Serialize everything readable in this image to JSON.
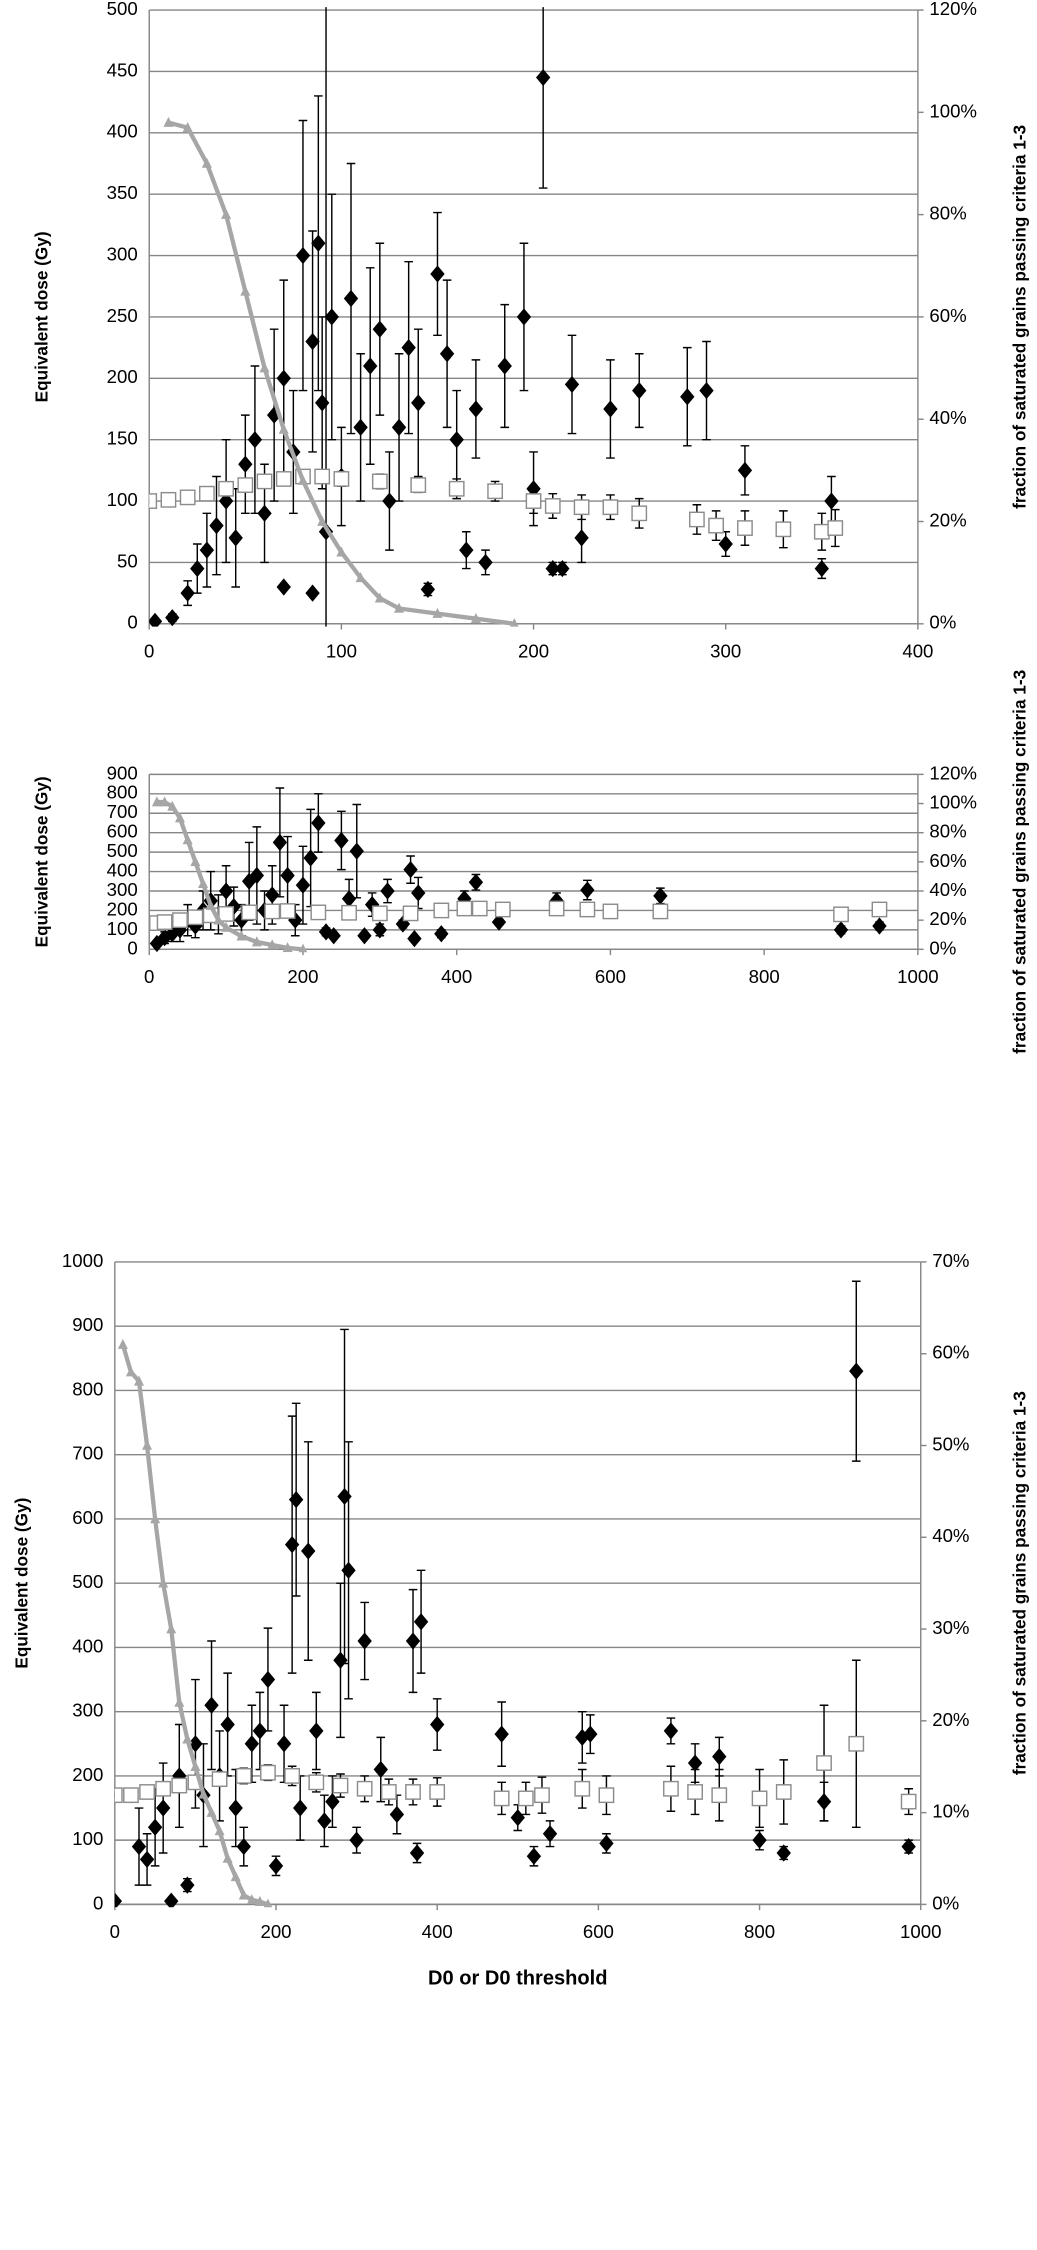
{
  "chart_data": [
    {
      "type": "scatter",
      "ylabel": "Equivalent dose (Gy)",
      "y2label": "fraction of saturated grains passing criteria 1-3",
      "xlim": [
        0,
        400
      ],
      "xticks": [
        0,
        100,
        200,
        300,
        400
      ],
      "ylim": [
        0,
        500
      ],
      "yticks": [
        0,
        50,
        100,
        150,
        200,
        250,
        300,
        350,
        400,
        450,
        500
      ],
      "y2lim": [
        0,
        120
      ],
      "y2ticks": [
        {
          "value": 0,
          "label": "0%"
        },
        {
          "value": 20,
          "label": "20%"
        },
        {
          "value": 40,
          "label": "40%"
        },
        {
          "value": 60,
          "label": "60%"
        },
        {
          "value": 80,
          "label": "80%"
        },
        {
          "value": 100,
          "label": "100%"
        },
        {
          "value": 120,
          "label": "120%"
        }
      ],
      "grid": true,
      "series": [
        {
          "color": "#000000",
          "marker": "diamond",
          "x": [
            3,
            12,
            20,
            25,
            30,
            35,
            40,
            45,
            50,
            55,
            60,
            65,
            70,
            75,
            80,
            85,
            88,
            90,
            95,
            100,
            105,
            110,
            115,
            120,
            125,
            130,
            135,
            140,
            145,
            150,
            155,
            160,
            165,
            170,
            175,
            185,
            195,
            200,
            205,
            210,
            215,
            220,
            225,
            240,
            255,
            280,
            290,
            300,
            310,
            350,
            355,
            92,
            70,
            85
          ],
          "values": [
            2,
            5,
            25,
            45,
            60,
            80,
            100,
            70,
            130,
            150,
            90,
            170,
            200,
            140,
            300,
            230,
            310,
            180,
            250,
            120,
            265,
            160,
            210,
            240,
            100,
            160,
            225,
            180,
            28,
            285,
            220,
            150,
            60,
            175,
            50,
            210,
            250,
            110,
            445,
            45,
            45,
            195,
            70,
            175,
            190,
            185,
            190,
            65,
            125,
            45,
            100,
            75,
            30,
            25
          ],
          "errors": [
            0,
            3,
            10,
            20,
            30,
            40,
            50,
            40,
            40,
            60,
            40,
            70,
            80,
            50,
            110,
            90,
            120,
            70,
            100,
            40,
            110,
            60,
            80,
            70,
            40,
            60,
            70,
            60,
            5,
            50,
            60,
            40,
            15,
            40,
            10,
            50,
            60,
            30,
            90,
            5,
            5,
            40,
            20,
            40,
            30,
            40,
            40,
            10,
            20,
            8,
            20,
            430,
            0,
            0
          ]
        },
        {
          "color": "#ffffff",
          "marker": "square",
          "x": [
            0,
            10,
            20,
            30,
            40,
            50,
            60,
            70,
            80,
            90,
            100,
            120,
            140,
            160,
            180,
            200,
            210,
            225,
            240,
            255,
            285,
            295,
            310,
            330,
            350,
            357
          ],
          "values": [
            100,
            101,
            103,
            106,
            110,
            113,
            116,
            118,
            120,
            120,
            118,
            116,
            113,
            110,
            108,
            100,
            96,
            95,
            95,
            90,
            85,
            80,
            78,
            77,
            75,
            78
          ],
          "errors": [
            2,
            2,
            3,
            3,
            4,
            4,
            5,
            5,
            5,
            5,
            6,
            6,
            6,
            8,
            8,
            10,
            10,
            10,
            10,
            12,
            12,
            12,
            14,
            15,
            15,
            15
          ]
        },
        {
          "color": "#a6a6a6",
          "marker": "triangle",
          "line": true,
          "axis": "y2",
          "x": [
            10,
            20,
            30,
            40,
            50,
            60,
            70,
            80,
            90,
            100,
            110,
            120,
            130,
            150,
            170,
            190
          ],
          "values": [
            98,
            97,
            90,
            80,
            65,
            50,
            38,
            28,
            20,
            14,
            9,
            5,
            3,
            2,
            1,
            0
          ]
        }
      ]
    },
    {
      "type": "scatter",
      "ylabel": "Equivalent dose (Gy)",
      "y2label": "fraction of saturated grains passing criteria 1-3",
      "xlim": [
        0,
        1000
      ],
      "xticks": [
        0,
        200,
        400,
        600,
        800,
        1000
      ],
      "ylim": [
        0,
        900
      ],
      "yticks": [
        0,
        100,
        200,
        300,
        400,
        500,
        600,
        700,
        800,
        900
      ],
      "y2lim": [
        0,
        120
      ],
      "y2ticks": [
        {
          "value": 0,
          "label": "0%"
        },
        {
          "value": 20,
          "label": "20%"
        },
        {
          "value": 40,
          "label": "40%"
        },
        {
          "value": 60,
          "label": "60%"
        },
        {
          "value": 80,
          "label": "80%"
        },
        {
          "value": 100,
          "label": "100%"
        },
        {
          "value": 120,
          "label": "120%"
        }
      ],
      "grid": true,
      "series": [
        {
          "color": "#000000",
          "marker": "diamond",
          "x": [
            10,
            20,
            30,
            40,
            50,
            60,
            70,
            80,
            90,
            100,
            110,
            120,
            130,
            140,
            150,
            160,
            170,
            180,
            190,
            200,
            210,
            220,
            230,
            240,
            250,
            260,
            270,
            280,
            290,
            300,
            310,
            330,
            340,
            345,
            350,
            380,
            410,
            425,
            455,
            530,
            570,
            665,
            900,
            950
          ],
          "values": [
            30,
            60,
            80,
            100,
            150,
            120,
            200,
            250,
            180,
            300,
            220,
            150,
            350,
            380,
            200,
            280,
            550,
            380,
            150,
            330,
            470,
            650,
            90,
            70,
            560,
            260,
            505,
            70,
            230,
            100,
            300,
            130,
            410,
            55,
            290,
            80,
            260,
            345,
            140,
            250,
            305,
            275,
            100,
            120
          ],
          "errors": [
            10,
            30,
            40,
            60,
            80,
            60,
            100,
            150,
            100,
            130,
            100,
            80,
            200,
            250,
            100,
            150,
            280,
            200,
            80,
            200,
            250,
            150,
            20,
            10,
            150,
            100,
            240,
            10,
            60,
            30,
            60,
            20,
            70,
            10,
            80,
            20,
            40,
            40,
            15,
            40,
            50,
            40,
            20,
            20
          ]
        },
        {
          "color": "#ffffff",
          "marker": "square",
          "x": [
            10,
            20,
            40,
            60,
            80,
            100,
            130,
            160,
            180,
            220,
            260,
            300,
            340,
            380,
            410,
            430,
            460,
            530,
            570,
            600,
            665,
            900,
            950
          ],
          "values": [
            135,
            140,
            150,
            165,
            175,
            182,
            190,
            195,
            197,
            190,
            188,
            185,
            185,
            200,
            210,
            210,
            205,
            210,
            205,
            195,
            195,
            180,
            205
          ],
          "errors": [
            3,
            4,
            5,
            6,
            8,
            10,
            10,
            12,
            12,
            15,
            15,
            18,
            20,
            20,
            20,
            20,
            22,
            25,
            28,
            30,
            35,
            35,
            35
          ]
        },
        {
          "color": "#a6a6a6",
          "marker": "triangle",
          "line": true,
          "axis": "y2",
          "x": [
            10,
            20,
            30,
            40,
            50,
            60,
            70,
            80,
            90,
            100,
            120,
            140,
            160,
            180,
            200
          ],
          "values": [
            101,
            101,
            98,
            90,
            75,
            60,
            45,
            30,
            20,
            15,
            9,
            5,
            3,
            1,
            0
          ]
        }
      ]
    },
    {
      "type": "scatter",
      "ylabel": "Equivalent dose (Gy)",
      "y2label": "fraction of  saturated grains passing criteria 1-3",
      "xlabel": "D0 or D0 threshold",
      "xlim": [
        0,
        1000
      ],
      "xticks": [
        0,
        200,
        400,
        600,
        800,
        1000
      ],
      "ylim": [
        0,
        1000
      ],
      "yticks": [
        0,
        100,
        200,
        300,
        400,
        500,
        600,
        700,
        800,
        900,
        1000
      ],
      "y2lim": [
        0,
        70
      ],
      "y2ticks": [
        {
          "value": 0,
          "label": "0%"
        },
        {
          "value": 10,
          "label": "10%"
        },
        {
          "value": 20,
          "label": "20%"
        },
        {
          "value": 30,
          "label": "30%"
        },
        {
          "value": 40,
          "label": "40%"
        },
        {
          "value": 50,
          "label": "50%"
        },
        {
          "value": 60,
          "label": "60%"
        },
        {
          "value": 70,
          "label": "70%"
        }
      ],
      "grid": true,
      "series": [
        {
          "color": "#000000",
          "marker": "diamond",
          "x": [
            0,
            30,
            40,
            50,
            60,
            70,
            80,
            90,
            100,
            110,
            120,
            130,
            140,
            150,
            160,
            170,
            180,
            190,
            200,
            210,
            220,
            225,
            230,
            240,
            250,
            260,
            270,
            280,
            285,
            290,
            300,
            310,
            330,
            350,
            370,
            375,
            380,
            400,
            480,
            500,
            520,
            540,
            580,
            590,
            610,
            690,
            720,
            750,
            800,
            830,
            880,
            920,
            985
          ],
          "values": [
            5,
            90,
            70,
            120,
            150,
            5,
            200,
            30,
            250,
            170,
            310,
            200,
            280,
            150,
            90,
            250,
            270,
            350,
            60,
            250,
            560,
            630,
            150,
            550,
            270,
            130,
            160,
            380,
            635,
            520,
            100,
            410,
            210,
            140,
            410,
            80,
            440,
            280,
            265,
            135,
            75,
            110,
            260,
            265,
            95,
            270,
            220,
            230,
            100,
            80,
            160,
            830,
            90
          ],
          "errors": [
            0,
            60,
            40,
            60,
            70,
            0,
            80,
            10,
            100,
            80,
            100,
            70,
            80,
            60,
            30,
            60,
            60,
            80,
            15,
            60,
            200,
            150,
            50,
            170,
            60,
            40,
            40,
            120,
            260,
            200,
            20,
            60,
            50,
            30,
            80,
            15,
            80,
            40,
            50,
            20,
            15,
            20,
            40,
            30,
            15,
            20,
            30,
            30,
            15,
            10,
            30,
            140,
            10
          ]
        },
        {
          "color": "#ffffff",
          "marker": "square",
          "x": [
            0,
            20,
            40,
            60,
            80,
            100,
            130,
            160,
            190,
            220,
            250,
            280,
            310,
            340,
            370,
            400,
            480,
            510,
            530,
            580,
            610,
            690,
            720,
            750,
            800,
            830,
            880,
            920,
            985
          ],
          "values": [
            170,
            170,
            175,
            180,
            185,
            190,
            195,
            200,
            205,
            200,
            190,
            185,
            180,
            175,
            175,
            175,
            165,
            165,
            170,
            180,
            170,
            180,
            175,
            170,
            165,
            175,
            220,
            250,
            160
          ],
          "errors": [
            3,
            4,
            5,
            6,
            8,
            10,
            10,
            12,
            12,
            15,
            15,
            18,
            20,
            20,
            20,
            22,
            25,
            25,
            28,
            30,
            30,
            35,
            35,
            40,
            45,
            50,
            90,
            130,
            20
          ]
        },
        {
          "color": "#a6a6a6",
          "marker": "triangle",
          "line": true,
          "axis": "y2",
          "x": [
            10,
            20,
            30,
            40,
            50,
            60,
            70,
            80,
            90,
            100,
            110,
            120,
            130,
            140,
            150,
            160,
            170,
            180,
            190
          ],
          "values": [
            61,
            58,
            57,
            50,
            42,
            35,
            30,
            22,
            18,
            15,
            12,
            10,
            8,
            5,
            3,
            1,
            0.5,
            0.3,
            0
          ]
        }
      ]
    }
  ]
}
